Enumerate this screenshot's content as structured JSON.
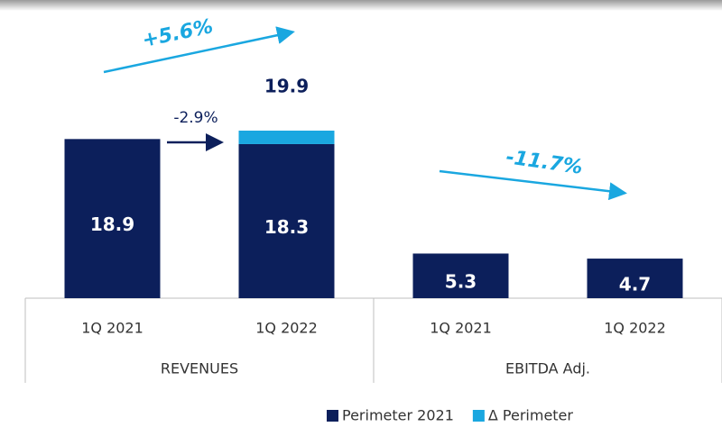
{
  "chart_data": {
    "type": "stacked_bar",
    "categories": [
      "1Q 2021",
      "1Q 2022",
      "1Q 2021",
      "1Q 2022"
    ],
    "groups": [
      {
        "label": "REVENUES",
        "span": 2
      },
      {
        "label": "EBITDA Adj.",
        "span": 2
      }
    ],
    "series": [
      {
        "name": "Perimeter 2021",
        "color": "#0c1f5b",
        "values": [
          18.9,
          18.3,
          5.3,
          4.7
        ]
      },
      {
        "name": "Δ Perimeter",
        "color": "#1aa7e0",
        "values": [
          null,
          1.6,
          null,
          null
        ]
      }
    ],
    "totals": [
      null,
      19.9,
      null,
      null
    ],
    "annotations": [
      {
        "text": "+5.6%"
      },
      {
        "text": "-2.9%"
      },
      {
        "text": "-11.7%"
      }
    ],
    "legend": "bottom"
  }
}
